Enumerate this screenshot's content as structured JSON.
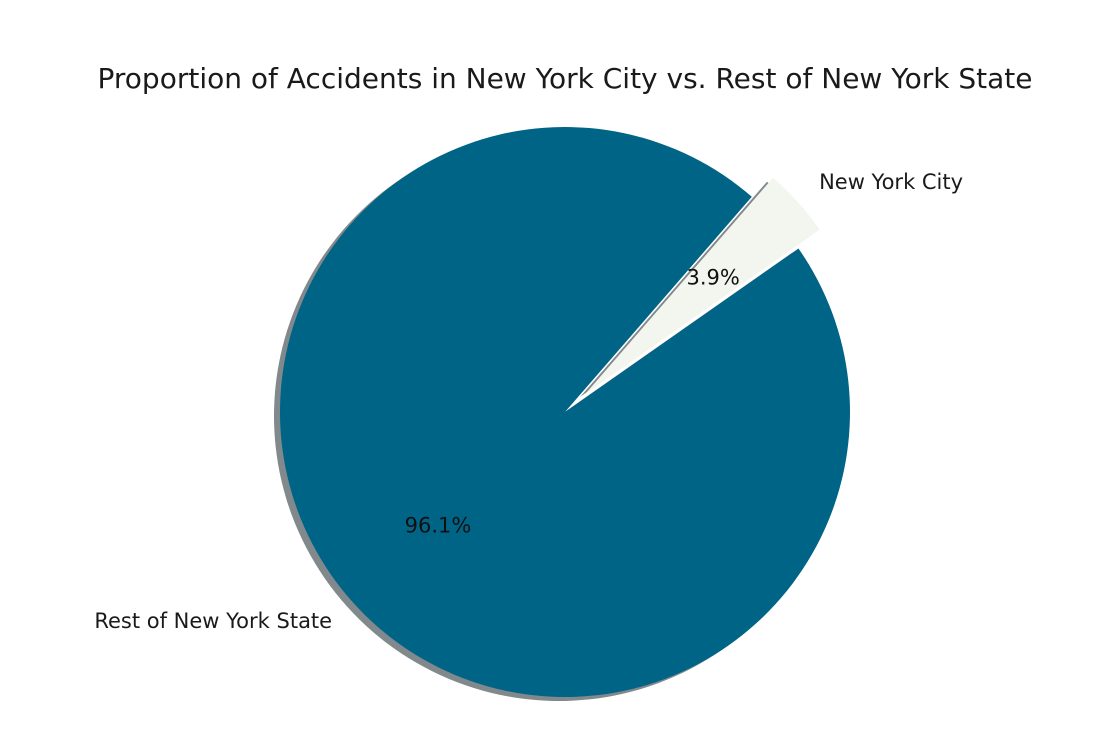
{
  "chart_data": {
    "type": "pie",
    "title": "Proportion of Accidents in New York City vs. Rest of New York State",
    "slices": [
      {
        "label": "New York City",
        "value": 3.9,
        "pct_label": "3.9%",
        "color": "#f3f6ee",
        "exploded": true
      },
      {
        "label": "Rest of New York State",
        "value": 96.1,
        "pct_label": "96.1%",
        "color": "#006487",
        "exploded": false
      }
    ],
    "start_angle_deg": 35,
    "shadow": true,
    "legend": "none"
  }
}
